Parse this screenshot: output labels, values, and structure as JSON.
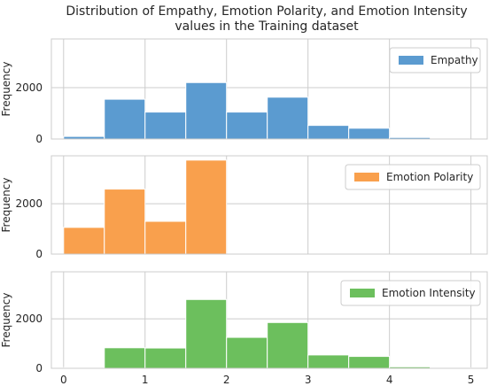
{
  "chart_data": {
    "title_lines": [
      "Distribution of Empathy, Emotion Polarity, and Emotion Intensity",
      "values in the Training dataset"
    ],
    "type": "bar",
    "xlim": [
      -0.15,
      5.2
    ],
    "xticks": [
      "0",
      "1",
      "2",
      "3",
      "4",
      "5"
    ],
    "bin_edges": [
      0,
      0.5,
      1,
      1.5,
      2,
      2.5,
      3,
      3.5,
      4,
      4.5,
      5
    ],
    "subplots": [
      {
        "name": "Empathy",
        "color": "#5b9bd0",
        "ylabel": "Frequency",
        "ylim": [
          0,
          3900
        ],
        "yticks": [
          "0",
          "2000"
        ],
        "values": [
          100,
          1550,
          1050,
          2200,
          1050,
          1630,
          530,
          420,
          60,
          0
        ]
      },
      {
        "name": "Emotion Polarity",
        "color": "#f9a04d",
        "ylabel": "Frequency",
        "ylim": [
          0,
          3900
        ],
        "yticks": [
          "0",
          "2000"
        ],
        "values": [
          1060,
          2580,
          1300,
          3730,
          0,
          0,
          0,
          0,
          0,
          0
        ]
      },
      {
        "name": "Emotion Intensity",
        "color": "#6cbf5d",
        "ylabel": "Frequency",
        "ylim": [
          0,
          3900
        ],
        "yticks": [
          "0",
          "2000"
        ],
        "values": [
          30,
          830,
          820,
          2780,
          1250,
          1850,
          540,
          480,
          60,
          20
        ]
      }
    ],
    "grid": true,
    "legend_position": "upper right"
  }
}
